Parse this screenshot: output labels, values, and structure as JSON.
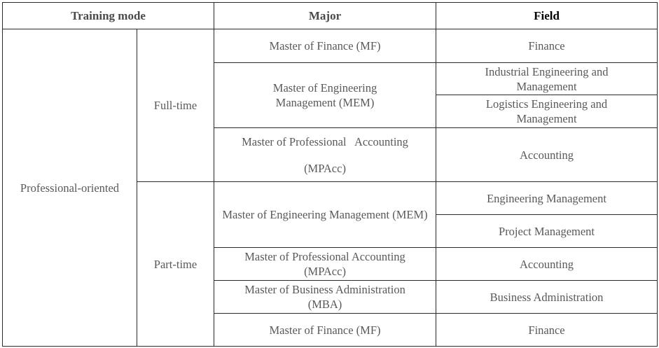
{
  "headers": {
    "training_mode": "Training mode",
    "major": "Major",
    "field": "Field"
  },
  "orientation": "Professional-oriented",
  "full_time": {
    "label": "Full-time",
    "rows": [
      {
        "major": "Master of Finance (MF)",
        "fields": [
          "Finance"
        ]
      },
      {
        "major": "Master of Engineering Management (MEM)",
        "fields": [
          "Industrial Engineering and Management",
          "Logistics Engineering and Management"
        ]
      },
      {
        "major_line1": "Master of Professional   Accounting",
        "major_line2": "(MPAcc)",
        "fields": [
          "Accounting"
        ]
      }
    ]
  },
  "part_time": {
    "label": "Part-time",
    "rows": [
      {
        "major": "Master of Engineering Management (MEM)",
        "fields": [
          "Engineering Management",
          "Project Management"
        ]
      },
      {
        "major": "Master of Professional Accounting (MPAcc)",
        "fields": [
          "Accounting"
        ]
      },
      {
        "major": "Master of Business Administration (MBA)",
        "fields": [
          "Business Administration"
        ]
      },
      {
        "major": "Master of Finance (MF)",
        "fields": [
          "Finance"
        ]
      }
    ]
  }
}
